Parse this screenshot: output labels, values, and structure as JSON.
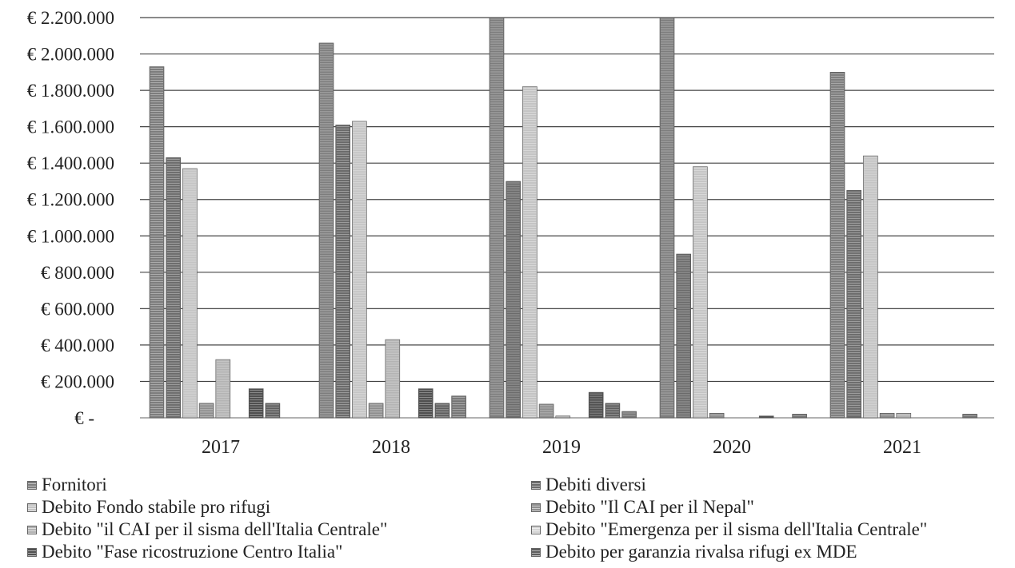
{
  "chart_data": {
    "type": "bar",
    "title": "",
    "xlabel": "",
    "ylabel": "",
    "categories": [
      "2017",
      "2018",
      "2019",
      "2020",
      "2021"
    ],
    "ylim": [
      0,
      2200000
    ],
    "yticks": [
      {
        "value": 0,
        "label": "€ -"
      },
      {
        "value": 200000,
        "label": "€ 200.000"
      },
      {
        "value": 400000,
        "label": "€ 400.000"
      },
      {
        "value": 600000,
        "label": "€ 600.000"
      },
      {
        "value": 800000,
        "label": "€ 800.000"
      },
      {
        "value": 1000000,
        "label": "€ 1.000.000"
      },
      {
        "value": 1200000,
        "label": "€ 1.200.000"
      },
      {
        "value": 1400000,
        "label": "€ 1.400.000"
      },
      {
        "value": 1600000,
        "label": "€ 1.600.000"
      },
      {
        "value": 1800000,
        "label": "€ 1.800.000"
      },
      {
        "value": 2000000,
        "label": "€ 2.000.000"
      },
      {
        "value": 2200000,
        "label": "€ 2.200.000"
      }
    ],
    "grid": true,
    "legend_position": "bottom",
    "series": [
      {
        "name": "Fornitori",
        "color": "#7d7d7d",
        "values": [
          1930000,
          2060000,
          2200000,
          2200000,
          1900000
        ]
      },
      {
        "name": "Debiti diversi",
        "color": "#6b6b6b",
        "values": [
          1430000,
          1610000,
          1300000,
          900000,
          1250000
        ]
      },
      {
        "name": "Debito Fondo stabile pro rifugi",
        "color": "#c4c4c4",
        "values": [
          1370000,
          1630000,
          1820000,
          1380000,
          1440000
        ]
      },
      {
        "name": "Debito \"Il CAI per il Nepal\"",
        "color": "#8e8e8e",
        "values": [
          80000,
          80000,
          75000,
          25000,
          25000
        ]
      },
      {
        "name": "Debito \"il CAI per il sisma dell'Italia Centrale\"",
        "color": "#b3b3b3",
        "values": [
          320000,
          430000,
          10000,
          0,
          25000
        ]
      },
      {
        "name": "Debito \"Emergenza per il sisma dell'Italia Centrale\"",
        "color": "#d5d5d5",
        "values": [
          0,
          0,
          0,
          0,
          0
        ]
      },
      {
        "name": "Debito \"Fase ricostruzione Centro Italia\"",
        "color": "#4f4f4f",
        "values": [
          160000,
          160000,
          140000,
          10000,
          0
        ]
      },
      {
        "name": "Debito per garanzia rivalsa rifugi ex MDE",
        "color": "#5e5e5e",
        "values": [
          80000,
          80000,
          80000,
          0,
          0
        ]
      },
      {
        "name": "",
        "color": "#747474",
        "values": [
          0,
          120000,
          35000,
          20000,
          20000
        ]
      }
    ],
    "legend": [
      {
        "label": "Fornitori",
        "color": "#7d7d7d"
      },
      {
        "label": "Debiti diversi",
        "color": "#6b6b6b"
      },
      {
        "label": "Debito Fondo stabile pro rifugi",
        "color": "#c4c4c4"
      },
      {
        "label": "Debito \"Il CAI per il Nepal\"",
        "color": "#8e8e8e"
      },
      {
        "label": "Debito \"il CAI per il sisma dell'Italia Centrale\"",
        "color": "#b3b3b3"
      },
      {
        "label": "Debito \"Emergenza per il sisma dell'Italia Centrale\"",
        "color": "#d5d5d5"
      },
      {
        "label": "Debito \"Fase ricostruzione Centro Italia\"",
        "color": "#4f4f4f"
      },
      {
        "label": "Debito per garanzia rivalsa rifugi ex MDE",
        "color": "#5e5e5e"
      }
    ]
  }
}
